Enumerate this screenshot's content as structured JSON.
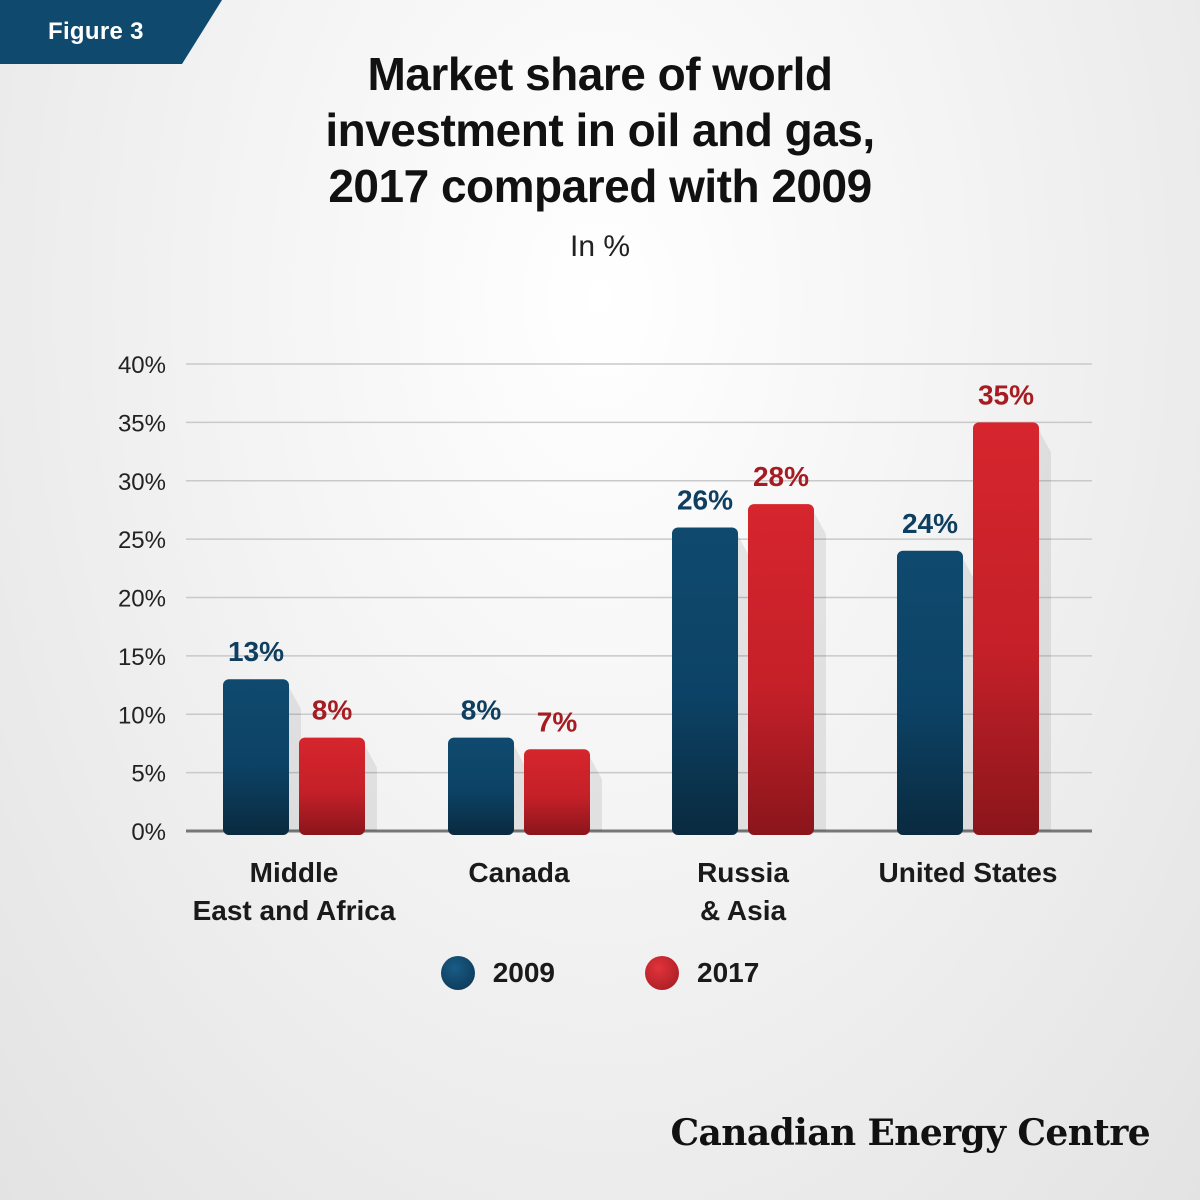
{
  "figure_tag": "Figure 3",
  "title_lines": [
    "Market share of world",
    "investment in oil and gas,",
    "2017 compared with 2009"
  ],
  "subtitle": "In %",
  "brand": "Canadian Energy Centre",
  "colors": {
    "series_2009": "#0f4a6e",
    "series_2017": "#d0232b",
    "label_2009": "#0f3f60",
    "label_2017": "#a51d22"
  },
  "chart_data": {
    "type": "bar",
    "title": "Market share of world investment in oil and gas, 2017 compared with 2009",
    "subtitle": "In %",
    "categories": [
      [
        "Middle",
        "East and Africa"
      ],
      [
        "Canada"
      ],
      [
        "Russia",
        "& Asia"
      ],
      [
        "United States"
      ]
    ],
    "series": [
      {
        "name": "2009",
        "values": [
          13,
          8,
          26,
          24
        ],
        "labels": [
          "13%",
          "8%",
          "26%",
          "24%"
        ]
      },
      {
        "name": "2017",
        "values": [
          8,
          7,
          28,
          35
        ],
        "labels": [
          "8%",
          "7%",
          "28%",
          "35%"
        ]
      }
    ],
    "yticks": [
      "0%",
      "5%",
      "10%",
      "15%",
      "20%",
      "25%",
      "30%",
      "35%",
      "40%"
    ],
    "ylim": [
      0,
      40
    ],
    "grid": true,
    "legend": "bottom-center"
  }
}
